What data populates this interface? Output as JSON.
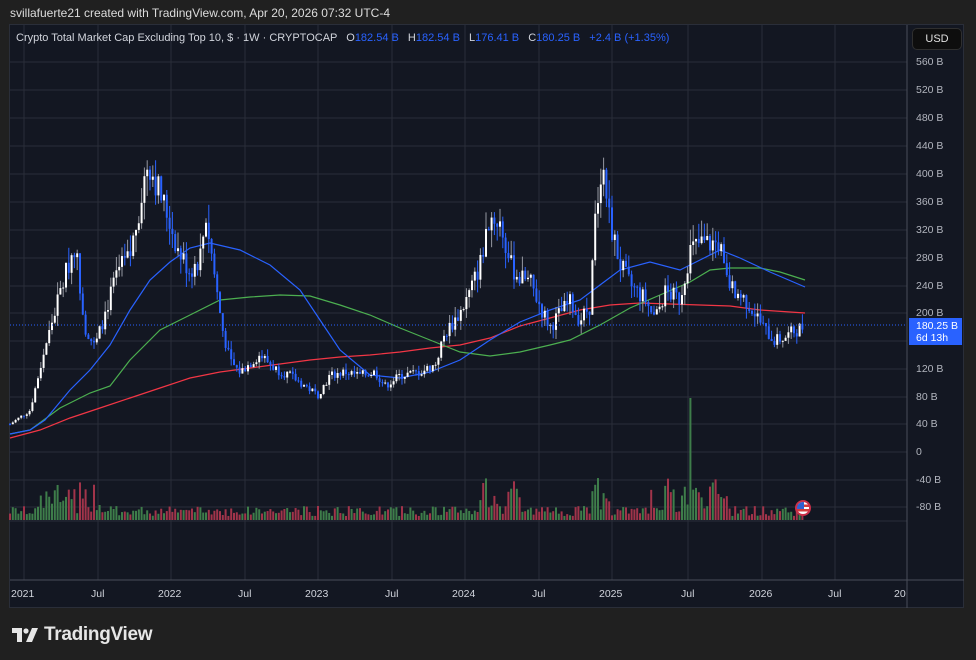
{
  "caption": "svillafuerte21 created with TradingView.com, Apr 20, 2026 07:32 UTC-4",
  "legend": {
    "symbol": "Crypto Total Market Cap Excluding Top 10, $ · 1W · CRYPTOCAP",
    "open_label": "O",
    "open": "182.54 B",
    "high_label": "H",
    "high": "182.54 B",
    "low_label": "L",
    "low": "176.41 B",
    "close_label": "C",
    "close": "180.25 B",
    "change": "+2.4 B (+1.35%)"
  },
  "currency_button": "USD",
  "price_tag": {
    "price": "180.25 B",
    "countdown": "6d 13h"
  },
  "y_axis": [
    "560 B",
    "520 B",
    "480 B",
    "440 B",
    "400 B",
    "360 B",
    "320 B",
    "280 B",
    "240 B",
    "200 B",
    "120 B",
    "80 B",
    "40 B",
    "0",
    "-40 B",
    "-80 B"
  ],
  "x_axis": [
    "2021",
    "Jul",
    "2022",
    "Jul",
    "2023",
    "Jul",
    "2024",
    "Jul",
    "2025",
    "Jul",
    "2026",
    "Jul",
    "20"
  ],
  "brand": "TradingView",
  "colors": {
    "up": "#ffffff",
    "down": "#2962ff",
    "ma_fast": "#2962ff",
    "ma_mid": "#4caf50",
    "ma_slow": "#f23645",
    "bg": "#131722"
  },
  "chart_data": {
    "type": "candlestick",
    "title": "Crypto Total Market Cap Excluding Top 10, $ · 1W · CRYPTOCAP",
    "xlabel": "",
    "ylabel": "USD",
    "ylim": [
      -80,
      560
    ],
    "x": [
      "2021-01",
      "2021-04",
      "2021-05",
      "2021-07",
      "2021-09",
      "2021-11",
      "2022-01",
      "2022-04",
      "2022-06",
      "2022-09",
      "2022-11",
      "2023-03",
      "2023-07",
      "2023-10",
      "2024-01",
      "2024-03",
      "2024-06",
      "2024-09",
      "2024-12",
      "2025-02",
      "2025-04",
      "2025-07",
      "2025-08",
      "2025-10",
      "2025-12",
      "2026-02",
      "2026-04"
    ],
    "series": [
      {
        "name": "Close (B USD)",
        "values": [
          40,
          240,
          170,
          150,
          300,
          440,
          300,
          290,
          130,
          120,
          110,
          140,
          100,
          110,
          200,
          350,
          260,
          190,
          430,
          280,
          180,
          290,
          330,
          220,
          200,
          165,
          180
        ]
      },
      {
        "name": "MA fast (blue)",
        "values": [
          30,
          100,
          200,
          260,
          290,
          300,
          280,
          200,
          140,
          120,
          110,
          115,
          120,
          130,
          140,
          180,
          200,
          210,
          240,
          270,
          260,
          270,
          290,
          270,
          250,
          240,
          236
        ]
      },
      {
        "name": "MA mid (green)",
        "values": [
          20,
          40,
          60,
          90,
          140,
          190,
          210,
          225,
          225,
          210,
          180,
          150,
          150,
          155,
          160,
          170,
          180,
          200,
          215,
          235,
          255,
          262,
          262,
          258,
          252,
          248,
          246
        ]
      },
      {
        "name": "MA slow (red)",
        "values": [
          18,
          30,
          45,
          60,
          80,
          100,
          115,
          125,
          130,
          135,
          140,
          150,
          160,
          170,
          190,
          200,
          205,
          210,
          210,
          210,
          205,
          200,
          198,
          197,
          196,
          195,
          195
        ]
      }
    ],
    "last": {
      "open": 182.54,
      "high": 182.54,
      "low": 176.41,
      "close": 180.25,
      "change": 2.4,
      "change_pct": 1.35
    },
    "grid": true
  }
}
